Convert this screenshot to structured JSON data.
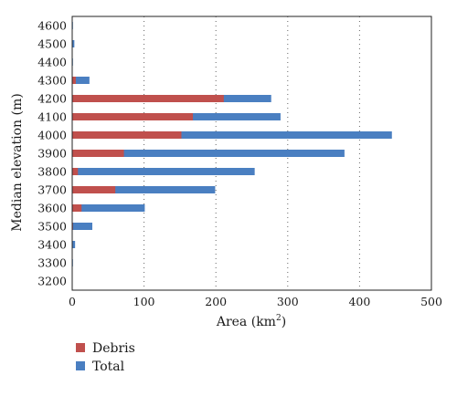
{
  "chart_data": {
    "type": "bar",
    "orientation": "horizontal",
    "stacking": "overlay",
    "categories": [
      "3200",
      "3300",
      "3400",
      "3500",
      "3600",
      "3700",
      "3800",
      "3900",
      "4000",
      "4100",
      "4200",
      "4300",
      "4400",
      "4500",
      "4600"
    ],
    "series": [
      {
        "name": "Total",
        "color": "#4a7fc1",
        "values": [
          0,
          1,
          4,
          28,
          101,
          199,
          254,
          379,
          445,
          290,
          277,
          24,
          1,
          3,
          1
        ]
      },
      {
        "name": "Debris",
        "color": "#c0504d",
        "values": [
          0,
          0,
          0,
          1,
          13,
          60,
          8,
          72,
          152,
          168,
          211,
          5,
          0,
          0,
          0
        ]
      }
    ],
    "xlabel": "Area (km",
    "xlabel_superscript": "2",
    "xlabel_suffix": ")",
    "ylabel": "Median elevation (m)",
    "xlim": [
      0,
      500
    ],
    "xticks": [
      "0",
      "100",
      "200",
      "300",
      "400",
      "500"
    ],
    "grid": "vertical dotted",
    "legend_position": "bottom-left"
  }
}
